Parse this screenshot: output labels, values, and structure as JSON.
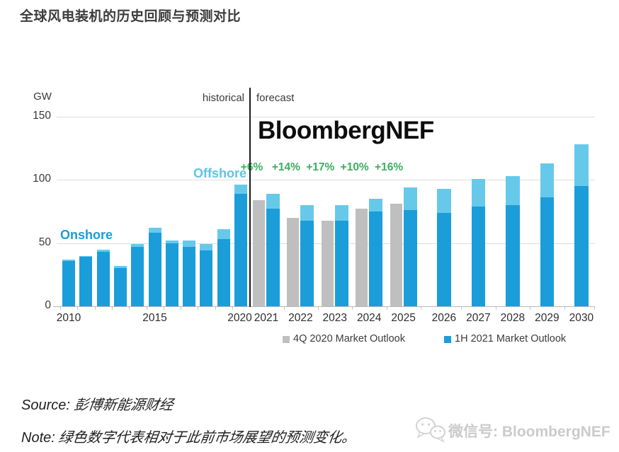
{
  "page": {
    "title": "全球风电装机的历史回顾与预测对比",
    "source_label": "Source:",
    "source_text": "彭博新能源财经",
    "note_label": "Note:",
    "note_text": "绿色数字代表相对于此前市场展望的预测变化。",
    "wechat_watermark": "微信号: BloombergNEF"
  },
  "chart": {
    "unit_label": "GW",
    "historical_label": "historical",
    "forecast_label": "forecast",
    "brand_watermark": "BloombergNEF",
    "onshore_label": "Onshore",
    "offshore_label": "Offshore",
    "legend": [
      {
        "label": "4Q 2020 Market Outlook",
        "color": "#bfbfbf"
      },
      {
        "label": "1H 2021 Market Outlook",
        "color": "#1b9dd9"
      }
    ],
    "colors": {
      "onshore": "#1b9dd9",
      "offshore": "#67c9ea",
      "outlook_4q2020": "#bfbfbf",
      "pct_change": "#3cae5e",
      "onshore_label": "#1b9cd8",
      "offshore_label": "#5fc4e6"
    }
  },
  "chart_data": {
    "type": "bar",
    "title": "全球风电装机的历史回顾与预测对比",
    "ylabel": "GW",
    "ylim": [
      0,
      150
    ],
    "yticks": [
      0,
      50,
      100,
      150
    ],
    "grid": true,
    "legend_position": "bottom",
    "x_labeled_years": [
      "2010",
      "2015",
      "2020",
      "2021",
      "2022",
      "2023",
      "2024",
      "2025",
      "2026",
      "2027",
      "2028",
      "2029",
      "2030"
    ],
    "historical": {
      "years": [
        2010,
        2011,
        2012,
        2013,
        2014,
        2015,
        2016,
        2017,
        2018,
        2019,
        2020
      ],
      "onshore": [
        36,
        39,
        43,
        30,
        47,
        58,
        50,
        47,
        44,
        53,
        89
      ],
      "offshore": [
        1,
        1,
        2,
        2,
        2,
        4,
        2,
        5,
        5,
        8,
        7
      ]
    },
    "forecast": {
      "years": [
        2021,
        2022,
        2023,
        2024,
        2025,
        2026,
        2027,
        2028,
        2029,
        2030
      ],
      "outlook_4q2020": [
        84,
        70,
        68,
        77,
        81
      ],
      "outlook_1h2021_onshore": [
        77,
        68,
        68,
        75,
        76,
        74,
        79,
        80,
        86,
        95
      ],
      "outlook_1h2021_offshore": [
        12,
        12,
        12,
        10,
        18,
        19,
        22,
        23,
        27,
        33
      ],
      "pct_change_vs_previous_outlook": [
        "+6%",
        "+14%",
        "+17%",
        "+10%",
        "+16%"
      ]
    }
  }
}
